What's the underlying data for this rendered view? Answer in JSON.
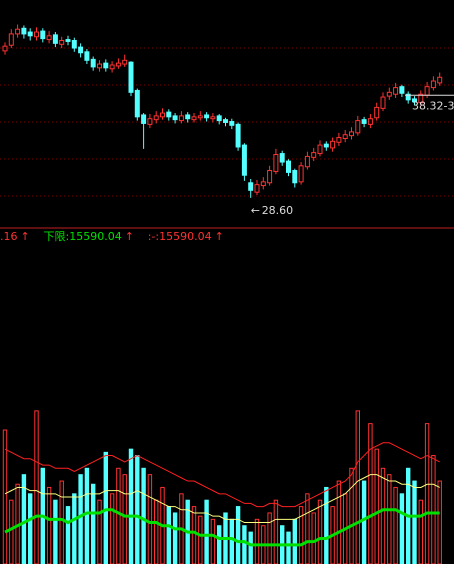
{
  "chart_data": [
    {
      "type": "candlestick",
      "open": [
        44.2,
        44.8,
        46.0,
        46.6,
        46.2,
        45.7,
        46.3,
        45.4,
        45.9,
        44.9,
        45.4,
        45.3,
        44.6,
        44.1,
        43.3,
        42.4,
        42.9,
        42.3,
        42.6,
        42.8,
        43.0,
        40.0,
        37.4,
        36.4,
        36.9,
        37.2,
        37.7,
        37.3,
        36.8,
        37.4,
        36.9,
        37.1,
        37.4,
        37.0,
        37.3,
        36.9,
        36.7,
        36.4,
        34.2,
        30.2,
        29.2,
        29.9,
        30.2,
        31.4,
        33.3,
        32.5,
        31.5,
        30.3,
        31.9,
        32.9,
        33.3,
        34.3,
        33.9,
        34.5,
        34.9,
        35.2,
        35.5,
        36.9,
        36.4,
        37.1,
        38.1,
        39.4,
        39.6,
        40.4,
        39.6,
        39.1,
        38.7,
        39.5,
        40.3,
        40.8
      ],
      "high": [
        45.1,
        46.5,
        47.0,
        46.9,
        46.6,
        46.7,
        46.6,
        46.3,
        46.2,
        45.7,
        45.8,
        45.6,
        45.0,
        44.4,
        43.6,
        43.2,
        43.3,
        43.1,
        43.4,
        43.8,
        43.1,
        40.2,
        37.6,
        37.5,
        37.8,
        38.1,
        38.0,
        37.6,
        37.8,
        37.7,
        37.6,
        37.8,
        37.7,
        37.6,
        37.5,
        37.1,
        37.0,
        36.6,
        34.4,
        30.6,
        30.5,
        30.8,
        32.0,
        33.8,
        33.6,
        32.7,
        31.7,
        32.4,
        33.5,
        33.9,
        34.7,
        34.6,
        35.0,
        35.5,
        35.8,
        36.1,
        37.3,
        37.2,
        37.5,
        38.7,
        39.8,
        40.3,
        40.8,
        40.6,
        39.9,
        39.4,
        40.0,
        40.9,
        41.5,
        41.9
      ],
      "low": [
        43.8,
        44.5,
        45.6,
        45.5,
        45.3,
        45.3,
        45.1,
        45.0,
        44.6,
        44.5,
        44.8,
        44.1,
        43.5,
        42.8,
        42.1,
        42.0,
        42.0,
        41.9,
        42.3,
        42.5,
        39.4,
        36.8,
        33.8,
        36.0,
        36.5,
        36.9,
        36.8,
        36.5,
        36.5,
        36.6,
        36.6,
        36.8,
        36.7,
        36.6,
        36.4,
        36.2,
        35.9,
        33.6,
        30.4,
        28.6,
        28.9,
        29.5,
        29.9,
        31.1,
        32.0,
        30.9,
        29.7,
        30.0,
        31.6,
        32.5,
        33.0,
        33.6,
        33.5,
        34.1,
        34.5,
        34.8,
        35.2,
        36.1,
        36.0,
        36.8,
        37.8,
        39.0,
        39.2,
        39.3,
        38.6,
        38.4,
        38.4,
        39.2,
        40.0,
        40.5
      ],
      "close": [
        44.7,
        46.0,
        46.5,
        46.0,
        45.8,
        46.2,
        45.5,
        45.8,
        45.0,
        45.3,
        45.2,
        44.5,
        44.0,
        43.2,
        42.5,
        42.8,
        42.4,
        42.7,
        42.9,
        43.2,
        39.8,
        37.2,
        36.5,
        37.0,
        37.3,
        37.6,
        37.2,
        36.9,
        37.3,
        37.0,
        37.2,
        37.3,
        37.1,
        37.2,
        36.8,
        36.6,
        36.3,
        34.0,
        31.0,
        29.4,
        30.0,
        30.3,
        31.5,
        33.2,
        32.4,
        31.3,
        30.2,
        32.0,
        33.0,
        33.4,
        34.2,
        34.0,
        34.6,
        35.0,
        35.3,
        35.6,
        36.8,
        36.5,
        37.0,
        38.2,
        39.3,
        39.8,
        40.3,
        39.7,
        39.0,
        38.8,
        39.6,
        40.4,
        41.0,
        41.4
      ],
      "ylim": [
        25.4,
        49.6
      ],
      "up_color": "#ff3232",
      "down_color": "#54ffff",
      "annotations": [
        {
          "label": "28.60",
          "value": 28.6
        },
        {
          "label": "38.32-3",
          "value": 38.32
        }
      ]
    },
    {
      "type": "bar",
      "legend": [
        {
          "text": ".16",
          "color": "#ff3232"
        },
        {
          "text": "下限:15590.04",
          "color": "#00e000"
        },
        {
          "text": ":-:15590.04",
          "color": "#ff3232"
        }
      ],
      "values": [
        42,
        20,
        25,
        28,
        22,
        48,
        30,
        24,
        20,
        26,
        18,
        22,
        28,
        30,
        25,
        20,
        35,
        22,
        30,
        28,
        36,
        34,
        30,
        28,
        20,
        24,
        18,
        16,
        22,
        20,
        18,
        15,
        20,
        14,
        12,
        16,
        14,
        18,
        12,
        10,
        14,
        12,
        16,
        20,
        12,
        10,
        14,
        18,
        22,
        16,
        20,
        24,
        18,
        26,
        22,
        30,
        48,
        26,
        44,
        36,
        30,
        28,
        24,
        22,
        30,
        26,
        20,
        44,
        34,
        26
      ],
      "ylim": [
        0,
        100
      ],
      "series": [
        {
          "color": "#ff2020",
          "values": [
            36,
            35,
            34,
            33,
            33,
            32,
            31,
            31,
            30,
            30,
            30,
            29,
            30,
            31,
            32,
            33,
            34,
            34,
            33,
            32,
            33,
            34,
            33,
            32,
            31,
            30,
            29,
            28,
            27,
            26,
            26,
            25,
            24,
            23,
            22,
            22,
            21,
            20,
            19,
            19,
            18,
            18,
            19,
            19,
            18,
            18,
            18,
            19,
            20,
            21,
            22,
            23,
            24,
            25,
            26,
            28,
            32,
            34,
            36,
            37,
            38,
            38,
            37,
            36,
            35,
            34,
            33,
            34,
            33,
            32
          ]
        },
        {
          "color": "#ffff80",
          "values": [
            22,
            23,
            24,
            24,
            23,
            23,
            22,
            22,
            22,
            21,
            21,
            21,
            21,
            22,
            22,
            22,
            23,
            23,
            23,
            22,
            22,
            23,
            22,
            21,
            20,
            19,
            18,
            18,
            17,
            17,
            16,
            16,
            16,
            15,
            15,
            14,
            14,
            14,
            13,
            13,
            13,
            13,
            13,
            14,
            14,
            14,
            14,
            15,
            16,
            17,
            18,
            19,
            20,
            21,
            22,
            24,
            26,
            27,
            28,
            28,
            27,
            26,
            26,
            25,
            25,
            24,
            24,
            25,
            25,
            24
          ]
        },
        {
          "color": "#00e000",
          "values": [
            10,
            11,
            12,
            13,
            14,
            15,
            15,
            14,
            14,
            14,
            13,
            14,
            15,
            16,
            16,
            16,
            17,
            17,
            16,
            15,
            15,
            15,
            14,
            13,
            13,
            12,
            12,
            11,
            11,
            10,
            10,
            9,
            9,
            9,
            8,
            8,
            8,
            7,
            7,
            6,
            6,
            6,
            6,
            6,
            6,
            6,
            6,
            6,
            7,
            7,
            8,
            8,
            9,
            10,
            11,
            12,
            13,
            14,
            15,
            16,
            17,
            17,
            17,
            16,
            15,
            15,
            15,
            16,
            16,
            16
          ]
        }
      ]
    }
  ]
}
